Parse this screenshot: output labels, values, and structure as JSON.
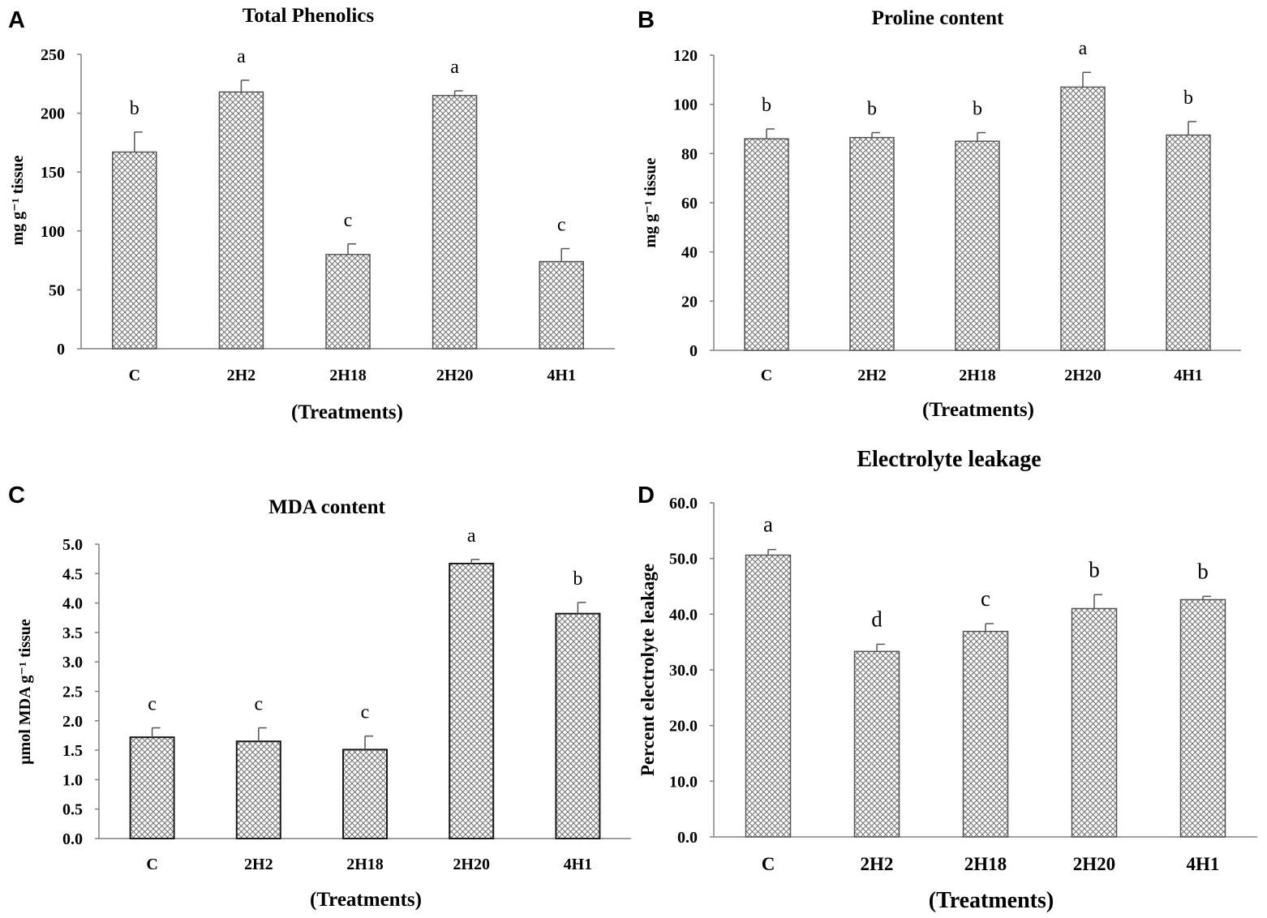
{
  "figure": {
    "colors": {
      "bar_stroke": "#555555",
      "bar_stroke_dark": "#1a1a1a",
      "hatch": "#6e6e6e",
      "axis": "#808080",
      "text": "#000000"
    }
  },
  "chart_data": [
    {
      "panel": "A",
      "type": "bar",
      "title": "Total Phenolics",
      "ylabel": "mg g⁻¹ tissue",
      "xlabel": "(Treatments)",
      "categories": [
        "C",
        "2H2",
        "2H18",
        "2H20",
        "4H1"
      ],
      "values": [
        167,
        218,
        80,
        215,
        74
      ],
      "errors": [
        17,
        10,
        9,
        4,
        11
      ],
      "letters": [
        "b",
        "a",
        "c",
        "a",
        "c"
      ],
      "ylim": [
        0,
        250
      ],
      "yticks": [
        "0",
        "50",
        "100",
        "150",
        "200",
        "250"
      ],
      "grid": false
    },
    {
      "panel": "B",
      "type": "bar",
      "title": "Proline content",
      "ylabel": "mg g⁻¹ tissue",
      "xlabel": "(Treatments)",
      "categories": [
        "C",
        "2H2",
        "2H18",
        "2H20",
        "4H1"
      ],
      "values": [
        86,
        86.5,
        85,
        107,
        87.5
      ],
      "errors": [
        4,
        2,
        3.5,
        6,
        5.5
      ],
      "letters": [
        "b",
        "b",
        "b",
        "a",
        "b"
      ],
      "ylim": [
        0,
        120
      ],
      "yticks": [
        "0",
        "20",
        "40",
        "60",
        "80",
        "100",
        "120"
      ],
      "grid": false
    },
    {
      "panel": "C",
      "type": "bar",
      "title": "MDA content",
      "ylabel": "μmol MDA g⁻¹ tissue",
      "xlabel": "(Treatments)",
      "categories": [
        "C",
        "2H2",
        "2H18",
        "2H20",
        "4H1"
      ],
      "values": [
        1.72,
        1.65,
        1.51,
        4.67,
        3.82
      ],
      "errors": [
        0.16,
        0.23,
        0.23,
        0.07,
        0.19
      ],
      "letters": [
        "c",
        "c",
        "c",
        "a",
        "b"
      ],
      "ylim": [
        0,
        5
      ],
      "yticks": [
        "0.0",
        "0.5",
        "1.0",
        "1.5",
        "2.0",
        "2.5",
        "3.0",
        "3.5",
        "4.0",
        "4.5",
        "5.0"
      ],
      "grid": false
    },
    {
      "panel": "D",
      "type": "bar",
      "title": "Electrolyte leakage",
      "ylabel": "Percent electrolyte leakage",
      "xlabel": "(Treatments)",
      "categories": [
        "C",
        "2H2",
        "2H18",
        "2H20",
        "4H1"
      ],
      "values": [
        50.6,
        33.3,
        36.9,
        41.0,
        42.6
      ],
      "errors": [
        1.0,
        1.3,
        1.4,
        2.5,
        0.6
      ],
      "letters": [
        "a",
        "d",
        "c",
        "b",
        "b"
      ],
      "ylim": [
        0,
        60
      ],
      "yticks": [
        "0.0",
        "10.0",
        "20.0",
        "30.0",
        "40.0",
        "50.0",
        "60.0"
      ],
      "grid": false
    }
  ]
}
